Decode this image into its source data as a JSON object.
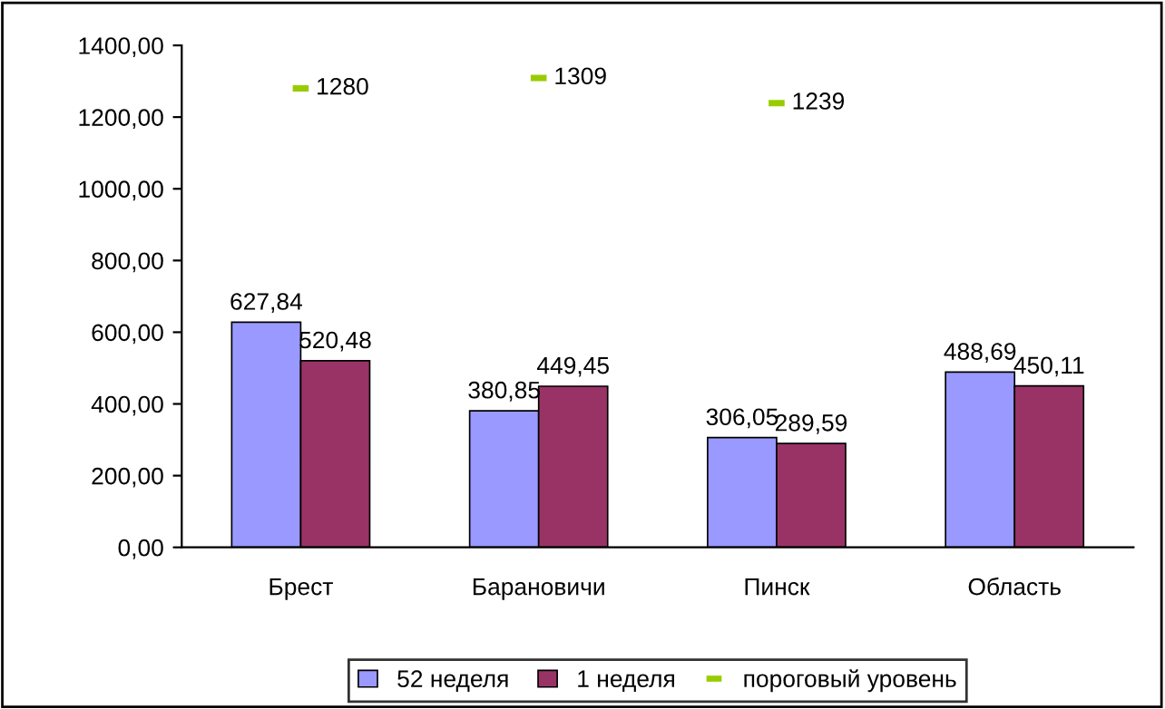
{
  "chart_data": {
    "type": "bar",
    "categories": [
      "Брест",
      "Барановичи",
      "Пинск",
      "Область"
    ],
    "series": [
      {
        "name": "52 неделя",
        "color": "#9999ff",
        "values": [
          627.84,
          380.85,
          306.05,
          488.69
        ],
        "value_labels": [
          "627,84",
          "380,85",
          "306,05",
          "488,69"
        ]
      },
      {
        "name": "1 неделя",
        "color": "#993366",
        "values": [
          520.48,
          449.45,
          289.59,
          450.11
        ],
        "value_labels": [
          "520,48",
          "449,45",
          "289,59",
          "450,11"
        ]
      },
      {
        "name": "пороговый уровень",
        "type": "scatter",
        "color": "#99cc00",
        "values": [
          1280,
          1309,
          1239,
          null
        ],
        "value_labels": [
          "1280",
          "1309",
          "1239",
          null
        ]
      }
    ],
    "ylim": [
      0,
      1400
    ],
    "yticks": [
      {
        "value": 0,
        "label": "0,00"
      },
      {
        "value": 200,
        "label": "200,00"
      },
      {
        "value": 400,
        "label": "400,00"
      },
      {
        "value": 600,
        "label": "600,00"
      },
      {
        "value": 800,
        "label": "800,00"
      },
      {
        "value": 1000,
        "label": "1000,00"
      },
      {
        "value": 1200,
        "label": "1200,00"
      },
      {
        "value": 1400,
        "label": "1400,00"
      }
    ],
    "legend": "bottom",
    "grid": false
  }
}
